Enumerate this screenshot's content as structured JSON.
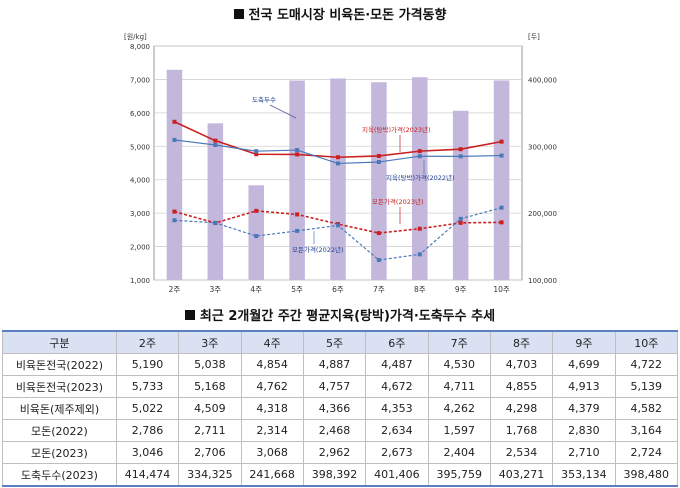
{
  "chart_title": "전국 도매시장 비육돈·모돈 가격동향",
  "table_title": "최근 2개월간 주간 평균지육(탕박)가격·도축두수 추세",
  "chart_data": {
    "type": "bar+line",
    "categories": [
      "2주",
      "3주",
      "4주",
      "5주",
      "6주",
      "7주",
      "8주",
      "9주",
      "10주"
    ],
    "y_left": {
      "unit": "[원/kg]",
      "ylim": [
        1000,
        8000
      ],
      "ticks": [
        "1,000",
        "2,000",
        "3,000",
        "4,000",
        "5,000",
        "6,000",
        "7,000",
        "8,000"
      ]
    },
    "y_right": {
      "unit": "[두]",
      "ylim": [
        100000,
        450000
      ],
      "ticks": [
        "100,000",
        "200,000",
        "300,000",
        "400,000"
      ]
    },
    "bars": {
      "name": "도축두수",
      "axis": "right",
      "values": [
        414474,
        334325,
        241668,
        398392,
        401406,
        395759,
        403271,
        353134,
        398480
      ]
    },
    "series": [
      {
        "name": "지육(탕박)가격(2023년)",
        "style": "solid",
        "color": "#cc1f1f",
        "values": [
          5733,
          5168,
          4762,
          4757,
          4672,
          4711,
          4855,
          4913,
          5139
        ]
      },
      {
        "name": "지육(탕박)가격(2022년)",
        "style": "solid",
        "color": "#4a78b8",
        "values": [
          5190,
          5038,
          4854,
          4887,
          4487,
          4530,
          4703,
          4699,
          4722
        ]
      },
      {
        "name": "모돈가격(2023년)",
        "style": "dashed",
        "color": "#cc1f1f",
        "values": [
          3046,
          2706,
          3068,
          2962,
          2673,
          2404,
          2534,
          2710,
          2724
        ]
      },
      {
        "name": "모돈가격(2022년)",
        "style": "dashed",
        "color": "#4a78b8",
        "values": [
          2786,
          2711,
          2314,
          2468,
          2634,
          1597,
          1768,
          2830,
          3164
        ]
      }
    ],
    "annotations": [
      "도축두수",
      "지육(탕박)가격(2023년)",
      "지육(탕박)가격(2022년)",
      "모돈가격(2023년)",
      "모돈가격(2022년)"
    ]
  },
  "table": {
    "headers": [
      "구분",
      "2주",
      "3주",
      "4주",
      "5주",
      "6주",
      "7주",
      "8주",
      "9주",
      "10주"
    ],
    "rows": [
      {
        "label": "비육돈전국(2022)",
        "values": [
          "5,190",
          "5,038",
          "4,854",
          "4,887",
          "4,487",
          "4,530",
          "4,703",
          "4,699",
          "4,722"
        ]
      },
      {
        "label": "비육돈전국(2023)",
        "values": [
          "5,733",
          "5,168",
          "4,762",
          "4,757",
          "4,672",
          "4,711",
          "4,855",
          "4,913",
          "5,139"
        ]
      },
      {
        "label": "비육돈(제주제외)",
        "values": [
          "5,022",
          "4,509",
          "4,318",
          "4,366",
          "4,353",
          "4,262",
          "4,298",
          "4,379",
          "4,582"
        ]
      },
      {
        "label": "모돈(2022)",
        "values": [
          "2,786",
          "2,711",
          "2,314",
          "2,468",
          "2,634",
          "1,597",
          "1,768",
          "2,830",
          "3,164"
        ]
      },
      {
        "label": "모돈(2023)",
        "values": [
          "3,046",
          "2,706",
          "3,068",
          "2,962",
          "2,673",
          "2,404",
          "2,534",
          "2,710",
          "2,724"
        ]
      },
      {
        "label": "도축두수(2023)",
        "values": [
          "414,474",
          "334,325",
          "241,668",
          "398,392",
          "401,406",
          "395,759",
          "403,271",
          "353,134",
          "398,480"
        ]
      }
    ]
  }
}
